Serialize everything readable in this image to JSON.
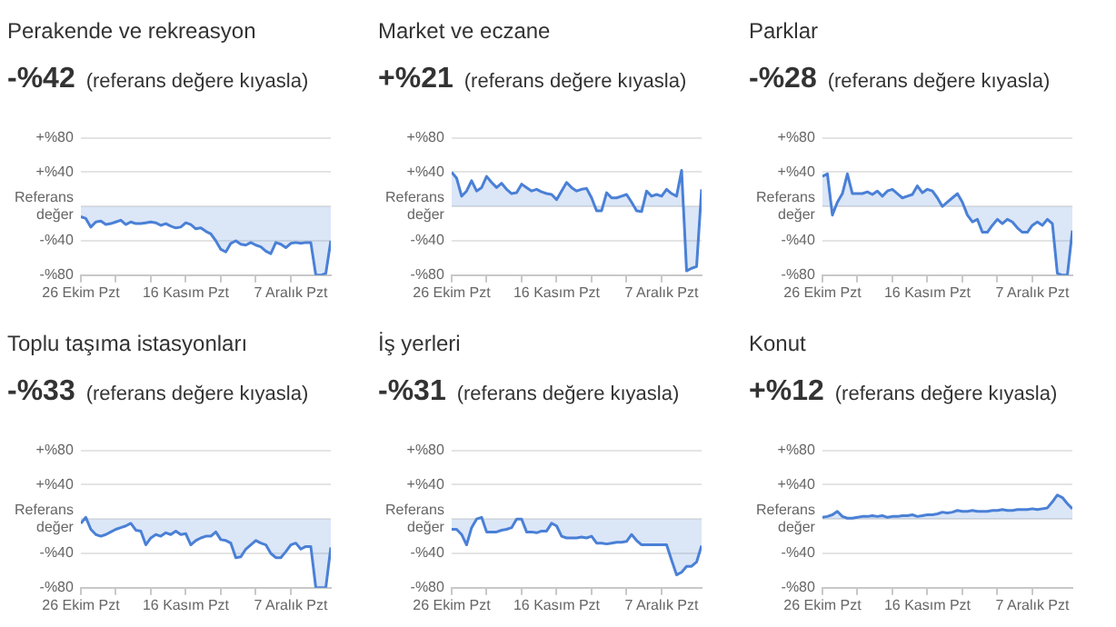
{
  "chart_data": [
    {
      "type": "area",
      "title": "Perakende ve rekreasyon",
      "subtitle": "-%42",
      "annotations": [
        "(referans değere kıyasla)"
      ],
      "x": [
        "--10-26",
        "--10-27",
        "--10-28",
        "--10-29",
        "--10-30",
        "--10-31",
        "--11-01",
        "--11-02",
        "--11-03",
        "--11-04",
        "--11-05",
        "--11-06",
        "--11-07",
        "--11-08",
        "--11-09",
        "--11-10",
        "--11-11",
        "--11-12",
        "--11-13",
        "--11-14",
        "--11-15",
        "--11-16",
        "--11-17",
        "--11-18",
        "--11-19",
        "--11-20",
        "--11-21",
        "--11-22",
        "--11-23",
        "--11-24",
        "--11-25",
        "--11-26",
        "--11-27",
        "--11-28",
        "--11-29",
        "--11-30",
        "--12-01",
        "--12-02",
        "--12-03",
        "--12-04",
        "--12-05",
        "--12-06",
        "--12-07",
        "--12-08",
        "--12-09",
        "--12-10",
        "--12-11",
        "--12-12",
        "--12-13",
        "--12-14",
        "--12-15"
      ],
      "series": [
        {
          "color": "#4a80d6",
          "values": [
            -12,
            -14,
            -24,
            -18,
            -17,
            -21,
            -20,
            -18,
            -16,
            -21,
            -18,
            -20,
            -20,
            -19,
            -18,
            -19,
            -22,
            -20,
            -23,
            -25,
            -24,
            -19,
            -21,
            -26,
            -25,
            -29,
            -32,
            -40,
            -50,
            -53,
            -43,
            -40,
            -44,
            -45,
            -42,
            -45,
            -47,
            -52,
            -55,
            -42,
            -44,
            -48,
            -43,
            -42,
            -43,
            -42,
            -42,
            -80,
            -80,
            -78,
            -40
          ]
        }
      ],
      "xlim": [
        "--10-26",
        "--12-15"
      ],
      "xticks": [
        {
          "value": "--10-26",
          "label": "26 Ekim Pzt"
        },
        {
          "value": "--11-02",
          "label": null
        },
        {
          "value": "--11-09",
          "label": null
        },
        {
          "value": "--11-16",
          "label": "16 Kasım Pzt"
        },
        {
          "value": "--11-23",
          "label": null
        },
        {
          "value": "--11-30",
          "label": null
        },
        {
          "value": "--12-07",
          "label": "7 Aralık Pzt"
        }
      ],
      "ylim": [
        -80,
        80
      ],
      "yticks": [
        {
          "value": -80,
          "label": "-%80"
        },
        {
          "value": -40,
          "label": "-%40"
        },
        {
          "value": 0,
          "label": "Referans değer"
        },
        {
          "value": 40,
          "label": "+%40"
        },
        {
          "value": 80,
          "label": "+%80"
        }
      ],
      "grid": "y"
    },
    {
      "type": "area",
      "title": "Market ve eczane",
      "subtitle": "+%21",
      "annotations": [
        "(referans değere kıyasla)"
      ],
      "x": [
        "--10-26",
        "--10-27",
        "--10-28",
        "--10-29",
        "--10-30",
        "--10-31",
        "--11-01",
        "--11-02",
        "--11-03",
        "--11-04",
        "--11-05",
        "--11-06",
        "--11-07",
        "--11-08",
        "--11-09",
        "--11-10",
        "--11-11",
        "--11-12",
        "--11-13",
        "--11-14",
        "--11-15",
        "--11-16",
        "--11-17",
        "--11-18",
        "--11-19",
        "--11-20",
        "--11-21",
        "--11-22",
        "--11-23",
        "--11-24",
        "--11-25",
        "--11-26",
        "--11-27",
        "--11-28",
        "--11-29",
        "--11-30",
        "--12-01",
        "--12-02",
        "--12-03",
        "--12-04",
        "--12-05",
        "--12-06",
        "--12-07",
        "--12-08",
        "--12-09",
        "--12-10",
        "--12-11",
        "--12-12",
        "--12-13",
        "--12-14",
        "--12-15"
      ],
      "series": [
        {
          "color": "#4a80d6",
          "values": [
            40,
            33,
            12,
            18,
            30,
            18,
            22,
            35,
            28,
            22,
            27,
            20,
            15,
            16,
            26,
            22,
            18,
            20,
            17,
            15,
            14,
            8,
            18,
            28,
            22,
            18,
            20,
            21,
            10,
            -5,
            -5,
            16,
            10,
            10,
            12,
            14,
            5,
            -5,
            -6,
            18,
            12,
            14,
            12,
            20,
            15,
            12,
            42,
            -75,
            -72,
            -70,
            20
          ]
        }
      ],
      "xlim": [
        "--10-26",
        "--12-15"
      ],
      "xticks": [
        {
          "value": "--10-26",
          "label": "26 Ekim Pzt"
        },
        {
          "value": "--11-02",
          "label": null
        },
        {
          "value": "--11-09",
          "label": null
        },
        {
          "value": "--11-16",
          "label": "16 Kasım Pzt"
        },
        {
          "value": "--11-23",
          "label": null
        },
        {
          "value": "--11-30",
          "label": null
        },
        {
          "value": "--12-07",
          "label": "7 Aralık Pzt"
        }
      ],
      "ylim": [
        -80,
        80
      ],
      "yticks": [
        {
          "value": -80,
          "label": "-%80"
        },
        {
          "value": -40,
          "label": "-%40"
        },
        {
          "value": 0,
          "label": "Referans değer"
        },
        {
          "value": 40,
          "label": "+%40"
        },
        {
          "value": 80,
          "label": "+%80"
        }
      ],
      "grid": "y"
    },
    {
      "type": "area",
      "title": "Parklar",
      "subtitle": "-%28",
      "annotations": [
        "(referans değere kıyasla)"
      ],
      "x": [
        "--10-26",
        "--10-27",
        "--10-28",
        "--10-29",
        "--10-30",
        "--10-31",
        "--11-01",
        "--11-02",
        "--11-03",
        "--11-04",
        "--11-05",
        "--11-06",
        "--11-07",
        "--11-08",
        "--11-09",
        "--11-10",
        "--11-11",
        "--11-12",
        "--11-13",
        "--11-14",
        "--11-15",
        "--11-16",
        "--11-17",
        "--11-18",
        "--11-19",
        "--11-20",
        "--11-21",
        "--11-22",
        "--11-23",
        "--11-24",
        "--11-25",
        "--11-26",
        "--11-27",
        "--11-28",
        "--11-29",
        "--11-30",
        "--12-01",
        "--12-02",
        "--12-03",
        "--12-04",
        "--12-05",
        "--12-06",
        "--12-07",
        "--12-08",
        "--12-09",
        "--12-10",
        "--12-11",
        "--12-12",
        "--12-13",
        "--12-14",
        "--12-15"
      ],
      "series": [
        {
          "color": "#4a80d6",
          "values": [
            35,
            38,
            -10,
            5,
            15,
            38,
            15,
            15,
            15,
            17,
            14,
            18,
            12,
            18,
            20,
            15,
            10,
            12,
            14,
            24,
            16,
            20,
            18,
            10,
            0,
            5,
            10,
            15,
            5,
            -10,
            -18,
            -15,
            -30,
            -30,
            -22,
            -15,
            -20,
            -15,
            -18,
            -25,
            -30,
            -30,
            -22,
            -18,
            -22,
            -15,
            -20,
            -78,
            -80,
            -80,
            -28
          ]
        }
      ],
      "xlim": [
        "--10-26",
        "--12-15"
      ],
      "xticks": [
        {
          "value": "--10-26",
          "label": "26 Ekim Pzt"
        },
        {
          "value": "--11-02",
          "label": null
        },
        {
          "value": "--11-09",
          "label": null
        },
        {
          "value": "--11-16",
          "label": "16 Kasım Pzt"
        },
        {
          "value": "--11-23",
          "label": null
        },
        {
          "value": "--11-30",
          "label": null
        },
        {
          "value": "--12-07",
          "label": "7 Aralık Pzt"
        }
      ],
      "ylim": [
        -80,
        80
      ],
      "yticks": [
        {
          "value": -80,
          "label": "-%80"
        },
        {
          "value": -40,
          "label": "-%40"
        },
        {
          "value": 0,
          "label": "Referans değer"
        },
        {
          "value": 40,
          "label": "+%40"
        },
        {
          "value": 80,
          "label": "+%80"
        }
      ],
      "grid": "y"
    },
    {
      "type": "area",
      "title": "Toplu taşıma istasyonları",
      "subtitle": "-%33",
      "annotations": [
        "(referans değere kıyasla)"
      ],
      "x": [
        "--10-26",
        "--10-27",
        "--10-28",
        "--10-29",
        "--10-30",
        "--10-31",
        "--11-01",
        "--11-02",
        "--11-03",
        "--11-04",
        "--11-05",
        "--11-06",
        "--11-07",
        "--11-08",
        "--11-09",
        "--11-10",
        "--11-11",
        "--11-12",
        "--11-13",
        "--11-14",
        "--11-15",
        "--11-16",
        "--11-17",
        "--11-18",
        "--11-19",
        "--11-20",
        "--11-21",
        "--11-22",
        "--11-23",
        "--11-24",
        "--11-25",
        "--11-26",
        "--11-27",
        "--11-28",
        "--11-29",
        "--11-30",
        "--12-01",
        "--12-02",
        "--12-03",
        "--12-04",
        "--12-05",
        "--12-06",
        "--12-07",
        "--12-08",
        "--12-09",
        "--12-10",
        "--12-11",
        "--12-12",
        "--12-13",
        "--12-14",
        "--12-15"
      ],
      "series": [
        {
          "color": "#4a80d6",
          "values": [
            -5,
            2,
            -12,
            -18,
            -20,
            -18,
            -15,
            -12,
            -10,
            -8,
            -5,
            -13,
            -14,
            -30,
            -22,
            -18,
            -20,
            -16,
            -18,
            -14,
            -18,
            -17,
            -30,
            -25,
            -22,
            -20,
            -20,
            -15,
            -24,
            -25,
            -28,
            -45,
            -44,
            -35,
            -30,
            -25,
            -28,
            -30,
            -40,
            -45,
            -45,
            -38,
            -30,
            -28,
            -35,
            -32,
            -32,
            -80,
            -80,
            -80,
            -33
          ]
        }
      ],
      "xlim": [
        "--10-26",
        "--12-15"
      ],
      "xticks": [
        {
          "value": "--10-26",
          "label": "26 Ekim Pzt"
        },
        {
          "value": "--11-02",
          "label": null
        },
        {
          "value": "--11-09",
          "label": null
        },
        {
          "value": "--11-16",
          "label": "16 Kasım Pzt"
        },
        {
          "value": "--11-23",
          "label": null
        },
        {
          "value": "--11-30",
          "label": null
        },
        {
          "value": "--12-07",
          "label": "7 Aralık Pzt"
        }
      ],
      "ylim": [
        -80,
        80
      ],
      "yticks": [
        {
          "value": -80,
          "label": "-%80"
        },
        {
          "value": -40,
          "label": "-%40"
        },
        {
          "value": 0,
          "label": "Referans değer"
        },
        {
          "value": 40,
          "label": "+%40"
        },
        {
          "value": 80,
          "label": "+%80"
        }
      ],
      "grid": "y"
    },
    {
      "type": "area",
      "title": "İş yerleri",
      "subtitle": "-%31",
      "annotations": [
        "(referans değere kıyasla)"
      ],
      "x": [
        "--10-26",
        "--10-27",
        "--10-28",
        "--10-29",
        "--10-30",
        "--10-31",
        "--11-01",
        "--11-02",
        "--11-03",
        "--11-04",
        "--11-05",
        "--11-06",
        "--11-07",
        "--11-08",
        "--11-09",
        "--11-10",
        "--11-11",
        "--11-12",
        "--11-13",
        "--11-14",
        "--11-15",
        "--11-16",
        "--11-17",
        "--11-18",
        "--11-19",
        "--11-20",
        "--11-21",
        "--11-22",
        "--11-23",
        "--11-24",
        "--11-25",
        "--11-26",
        "--11-27",
        "--11-28",
        "--11-29",
        "--11-30",
        "--12-01",
        "--12-02",
        "--12-03",
        "--12-04",
        "--12-05",
        "--12-06",
        "--12-07",
        "--12-08",
        "--12-09",
        "--12-10",
        "--12-11",
        "--12-12",
        "--12-13",
        "--12-14",
        "--12-15"
      ],
      "series": [
        {
          "color": "#4a80d6",
          "values": [
            -12,
            -12,
            -18,
            -30,
            -10,
            0,
            2,
            -15,
            -15,
            -15,
            -13,
            -12,
            -10,
            0,
            0,
            -15,
            -15,
            -16,
            -14,
            -14,
            -5,
            -8,
            -20,
            -22,
            -22,
            -22,
            -21,
            -22,
            -20,
            -28,
            -28,
            -29,
            -28,
            -27,
            -27,
            -26,
            -18,
            -25,
            -30,
            -30,
            -30,
            -30,
            -30,
            -30,
            -48,
            -65,
            -62,
            -55,
            -55,
            -50,
            -31
          ]
        }
      ],
      "xlim": [
        "--10-26",
        "--12-15"
      ],
      "xticks": [
        {
          "value": "--10-26",
          "label": "26 Ekim Pzt"
        },
        {
          "value": "--11-02",
          "label": null
        },
        {
          "value": "--11-09",
          "label": null
        },
        {
          "value": "--11-16",
          "label": "16 Kasım Pzt"
        },
        {
          "value": "--11-23",
          "label": null
        },
        {
          "value": "--11-30",
          "label": null
        },
        {
          "value": "--12-07",
          "label": "7 Aralık Pzt"
        }
      ],
      "ylim": [
        -80,
        80
      ],
      "yticks": [
        {
          "value": -80,
          "label": "-%80"
        },
        {
          "value": -40,
          "label": "-%40"
        },
        {
          "value": 0,
          "label": "Referans değer"
        },
        {
          "value": 40,
          "label": "+%40"
        },
        {
          "value": 80,
          "label": "+%80"
        }
      ],
      "grid": "y"
    },
    {
      "type": "area",
      "title": "Konut",
      "subtitle": "+%12",
      "annotations": [
        "(referans değere kıyasla)"
      ],
      "x": [
        "--10-26",
        "--10-27",
        "--10-28",
        "--10-29",
        "--10-30",
        "--10-31",
        "--11-01",
        "--11-02",
        "--11-03",
        "--11-04",
        "--11-05",
        "--11-06",
        "--11-07",
        "--11-08",
        "--11-09",
        "--11-10",
        "--11-11",
        "--11-12",
        "--11-13",
        "--11-14",
        "--11-15",
        "--11-16",
        "--11-17",
        "--11-18",
        "--11-19",
        "--11-20",
        "--11-21",
        "--11-22",
        "--11-23",
        "--11-24",
        "--11-25",
        "--11-26",
        "--11-27",
        "--11-28",
        "--11-29",
        "--11-30",
        "--12-01",
        "--12-02",
        "--12-03",
        "--12-04",
        "--12-05",
        "--12-06",
        "--12-07",
        "--12-08",
        "--12-09",
        "--12-10",
        "--12-11",
        "--12-12",
        "--12-13",
        "--12-14",
        "--12-15"
      ],
      "series": [
        {
          "color": "#4a80d6",
          "values": [
            2,
            3,
            5,
            9,
            3,
            1,
            1,
            2,
            3,
            3,
            4,
            3,
            4,
            2,
            3,
            3,
            4,
            4,
            5,
            3,
            4,
            5,
            5,
            6,
            8,
            7,
            8,
            10,
            9,
            9,
            10,
            9,
            9,
            9,
            10,
            10,
            11,
            10,
            10,
            11,
            11,
            11,
            12,
            11,
            12,
            13,
            20,
            28,
            25,
            18,
            12
          ]
        }
      ],
      "xlim": [
        "--10-26",
        "--12-15"
      ],
      "xticks": [
        {
          "value": "--10-26",
          "label": "26 Ekim Pzt"
        },
        {
          "value": "--11-02",
          "label": null
        },
        {
          "value": "--11-09",
          "label": null
        },
        {
          "value": "--11-16",
          "label": "16 Kasım Pzt"
        },
        {
          "value": "--11-23",
          "label": null
        },
        {
          "value": "--11-30",
          "label": null
        },
        {
          "value": "--12-07",
          "label": "7 Aralık Pzt"
        }
      ],
      "ylim": [
        -80,
        80
      ],
      "yticks": [
        {
          "value": -80,
          "label": "-%80"
        },
        {
          "value": -40,
          "label": "-%40"
        },
        {
          "value": 0,
          "label": "Referans değer"
        },
        {
          "value": 40,
          "label": "+%40"
        },
        {
          "value": 80,
          "label": "+%80"
        }
      ],
      "grid": "y"
    }
  ]
}
